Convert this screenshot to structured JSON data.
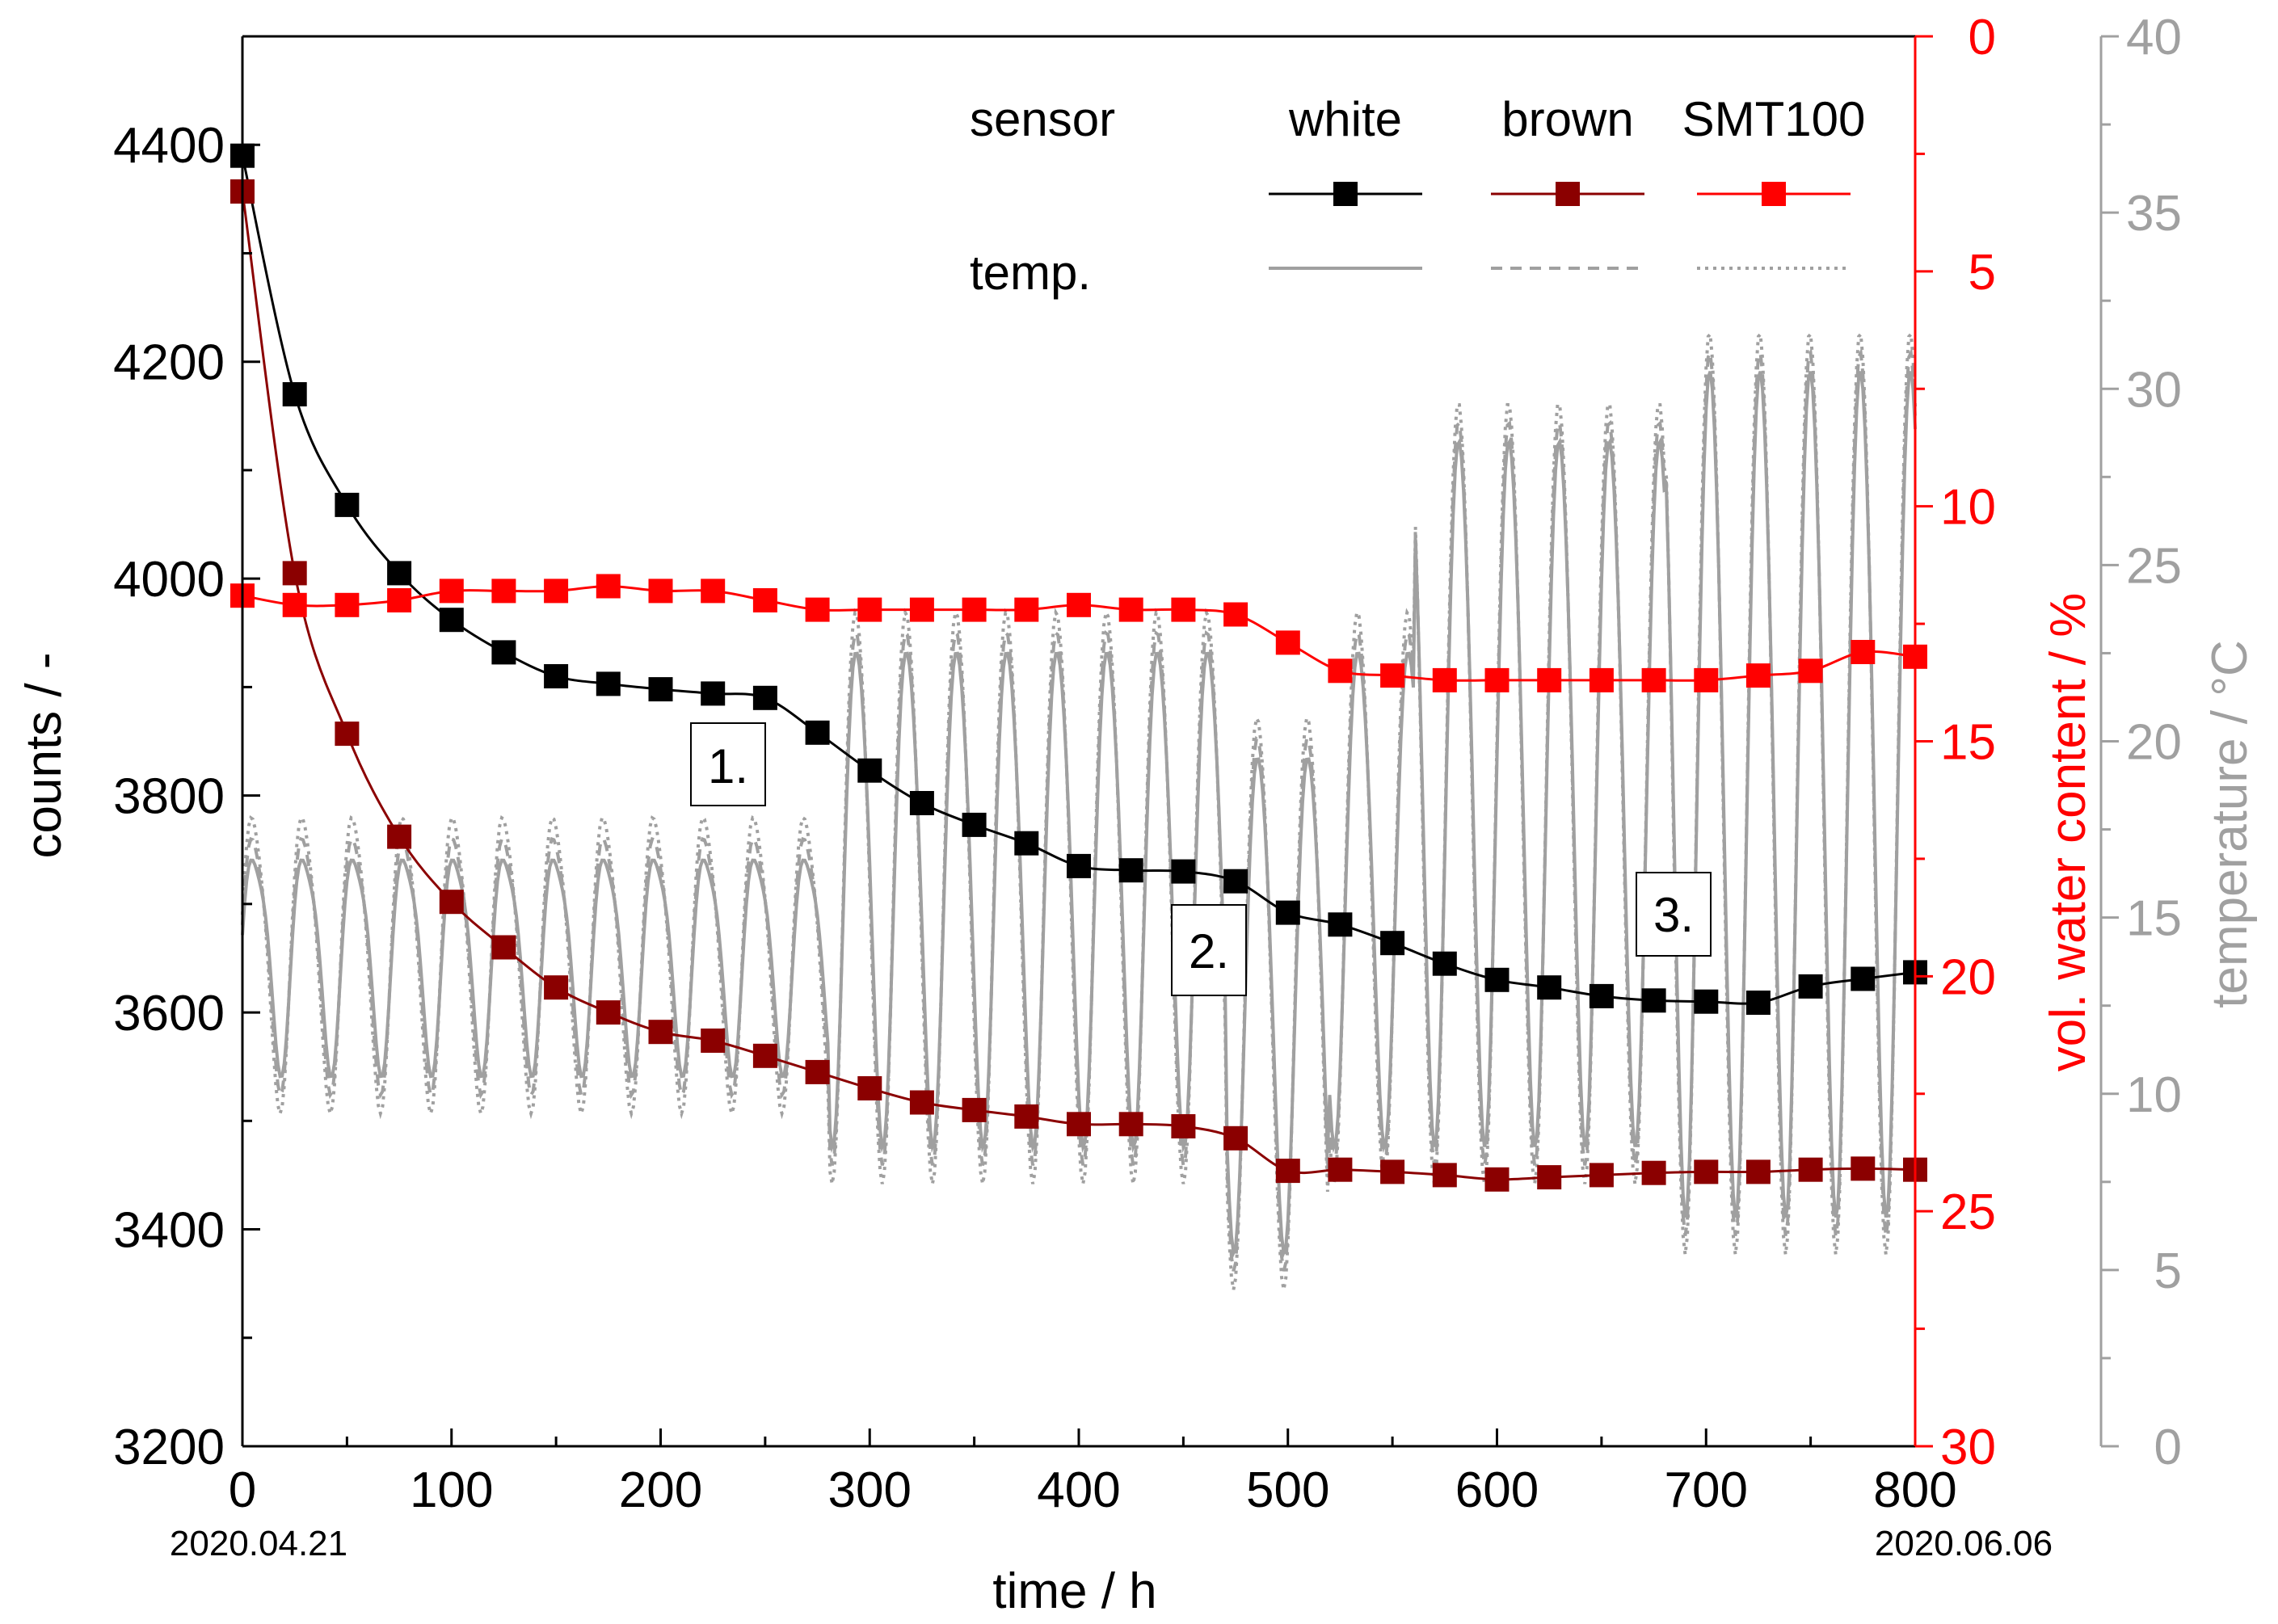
{
  "chart_data": {
    "type": "line",
    "x": {
      "label": "time / h",
      "range": [
        0,
        800
      ],
      "ticks": [
        0,
        100,
        200,
        300,
        400,
        500,
        600,
        700,
        800
      ],
      "start_date": "2020.04.21",
      "end_date": "2020.06.06"
    },
    "y_left": {
      "label": "counts / -",
      "range": [
        3200,
        4500
      ],
      "ticks": [
        3200,
        3400,
        3600,
        3800,
        4000,
        4200,
        4400
      ],
      "color": "#000000"
    },
    "y_right_water": {
      "label": "vol. water content / %",
      "range": [
        0,
        30
      ],
      "reversed": true,
      "ticks": [
        0,
        5,
        10,
        15,
        20,
        25,
        30
      ],
      "color": "#ff0000"
    },
    "y_right_temp": {
      "label": "temperature / °C",
      "range": [
        0,
        40
      ],
      "ticks": [
        0,
        5,
        10,
        15,
        20,
        25,
        30,
        35,
        40
      ],
      "color": "#a0a0a0"
    },
    "legend": {
      "row1_label": "sensor",
      "row2_label": "temp.",
      "columns": [
        {
          "name": "white",
          "marker_color": "#000000",
          "temp_style": "solid"
        },
        {
          "name": "brown",
          "marker_color": "#8b0000",
          "temp_style": "dashed"
        },
        {
          "name": "SMT100",
          "marker_color": "#ff0000",
          "temp_style": "dotted"
        }
      ]
    },
    "annotations": [
      "1.",
      "2.",
      "3."
    ],
    "series": [
      {
        "name": "white",
        "axis": "y_left",
        "color": "#000000",
        "x": [
          0,
          25,
          50,
          75,
          100,
          125,
          150,
          175,
          200,
          225,
          250,
          275,
          300,
          325,
          350,
          375,
          400,
          425,
          450,
          475,
          500,
          525,
          550,
          575,
          600,
          625,
          650,
          675,
          700,
          725,
          750,
          775,
          800
        ],
        "y": [
          4390,
          4170,
          4068,
          4005,
          3962,
          3932,
          3910,
          3903,
          3898,
          3894,
          3890,
          3858,
          3823,
          3793,
          3773,
          3756,
          3735,
          3731,
          3730,
          3721,
          3692,
          3681,
          3664,
          3645,
          3630,
          3623,
          3615,
          3611,
          3610,
          3609,
          3624,
          3631,
          3637
        ]
      },
      {
        "name": "brown",
        "axis": "y_left",
        "color": "#8b0000",
        "x": [
          0,
          25,
          50,
          75,
          100,
          125,
          150,
          175,
          200,
          225,
          250,
          275,
          300,
          325,
          350,
          375,
          400,
          425,
          450,
          475,
          500,
          525,
          550,
          575,
          600,
          625,
          650,
          675,
          700,
          725,
          750,
          775,
          800
        ],
        "y": [
          4357,
          4005,
          3857,
          3762,
          3702,
          3660,
          3623,
          3600,
          3582,
          3574,
          3560,
          3545,
          3530,
          3517,
          3510,
          3504,
          3497,
          3497,
          3495,
          3484,
          3454,
          3455,
          3453,
          3450,
          3446,
          3448,
          3450,
          3452,
          3453,
          3453,
          3455,
          3456,
          3455
        ]
      },
      {
        "name": "SMT100",
        "axis": "y_right_water",
        "color": "#ff0000",
        "x": [
          0,
          25,
          50,
          75,
          100,
          125,
          150,
          175,
          200,
          225,
          250,
          275,
          300,
          325,
          350,
          375,
          400,
          425,
          450,
          475,
          500,
          525,
          550,
          575,
          600,
          625,
          650,
          675,
          700,
          725,
          750,
          775,
          800
        ],
        "y": [
          11.9,
          12.1,
          12.1,
          12.0,
          11.8,
          11.8,
          11.8,
          11.7,
          11.8,
          11.8,
          12.0,
          12.2,
          12.2,
          12.2,
          12.2,
          12.2,
          12.1,
          12.2,
          12.2,
          12.3,
          12.9,
          13.5,
          13.6,
          13.7,
          13.7,
          13.7,
          13.7,
          13.7,
          13.7,
          13.6,
          13.5,
          13.1,
          13.2
        ]
      }
    ]
  }
}
